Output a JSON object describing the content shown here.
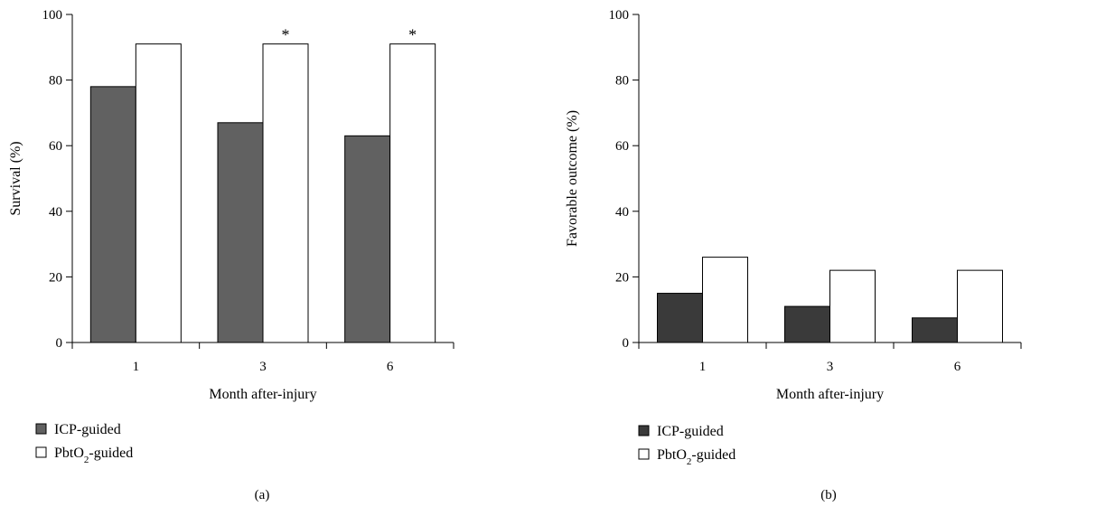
{
  "chart_data": [
    {
      "type": "bar",
      "panel_label": "(a)",
      "categories": [
        "1",
        "3",
        "6"
      ],
      "xlabel": "Month after-injury",
      "ylabel": "Survival (%)",
      "ylim": [
        0,
        100
      ],
      "yticks": [
        "0",
        "20",
        "40",
        "60",
        "80",
        "100"
      ],
      "grid": false,
      "legend_position": "bottom-left",
      "series": [
        {
          "name": "ICP-guided",
          "values": [
            78,
            67,
            63
          ],
          "color": "#616161"
        },
        {
          "name": "PbtO₂-guided",
          "values": [
            91,
            91,
            91
          ],
          "color": "#ffffff"
        }
      ],
      "significance": [
        {
          "category_index": 1,
          "series_index": 1,
          "label": "*"
        },
        {
          "category_index": 2,
          "series_index": 1,
          "label": "*"
        }
      ]
    },
    {
      "type": "bar",
      "panel_label": "(b)",
      "categories": [
        "1",
        "3",
        "6"
      ],
      "xlabel": "Month after-injury",
      "ylabel": "Favorable outcome (%)",
      "ylim": [
        0,
        100
      ],
      "yticks": [
        "0",
        "20",
        "40",
        "60",
        "80",
        "100"
      ],
      "grid": false,
      "legend_position": "bottom-left",
      "series": [
        {
          "name": "ICP-guided",
          "values": [
            15,
            11,
            7.5
          ],
          "color": "#3a3a3a"
        },
        {
          "name": "PbtO₂-guided",
          "values": [
            26,
            22,
            22
          ],
          "color": "#ffffff"
        }
      ],
      "significance": []
    }
  ]
}
